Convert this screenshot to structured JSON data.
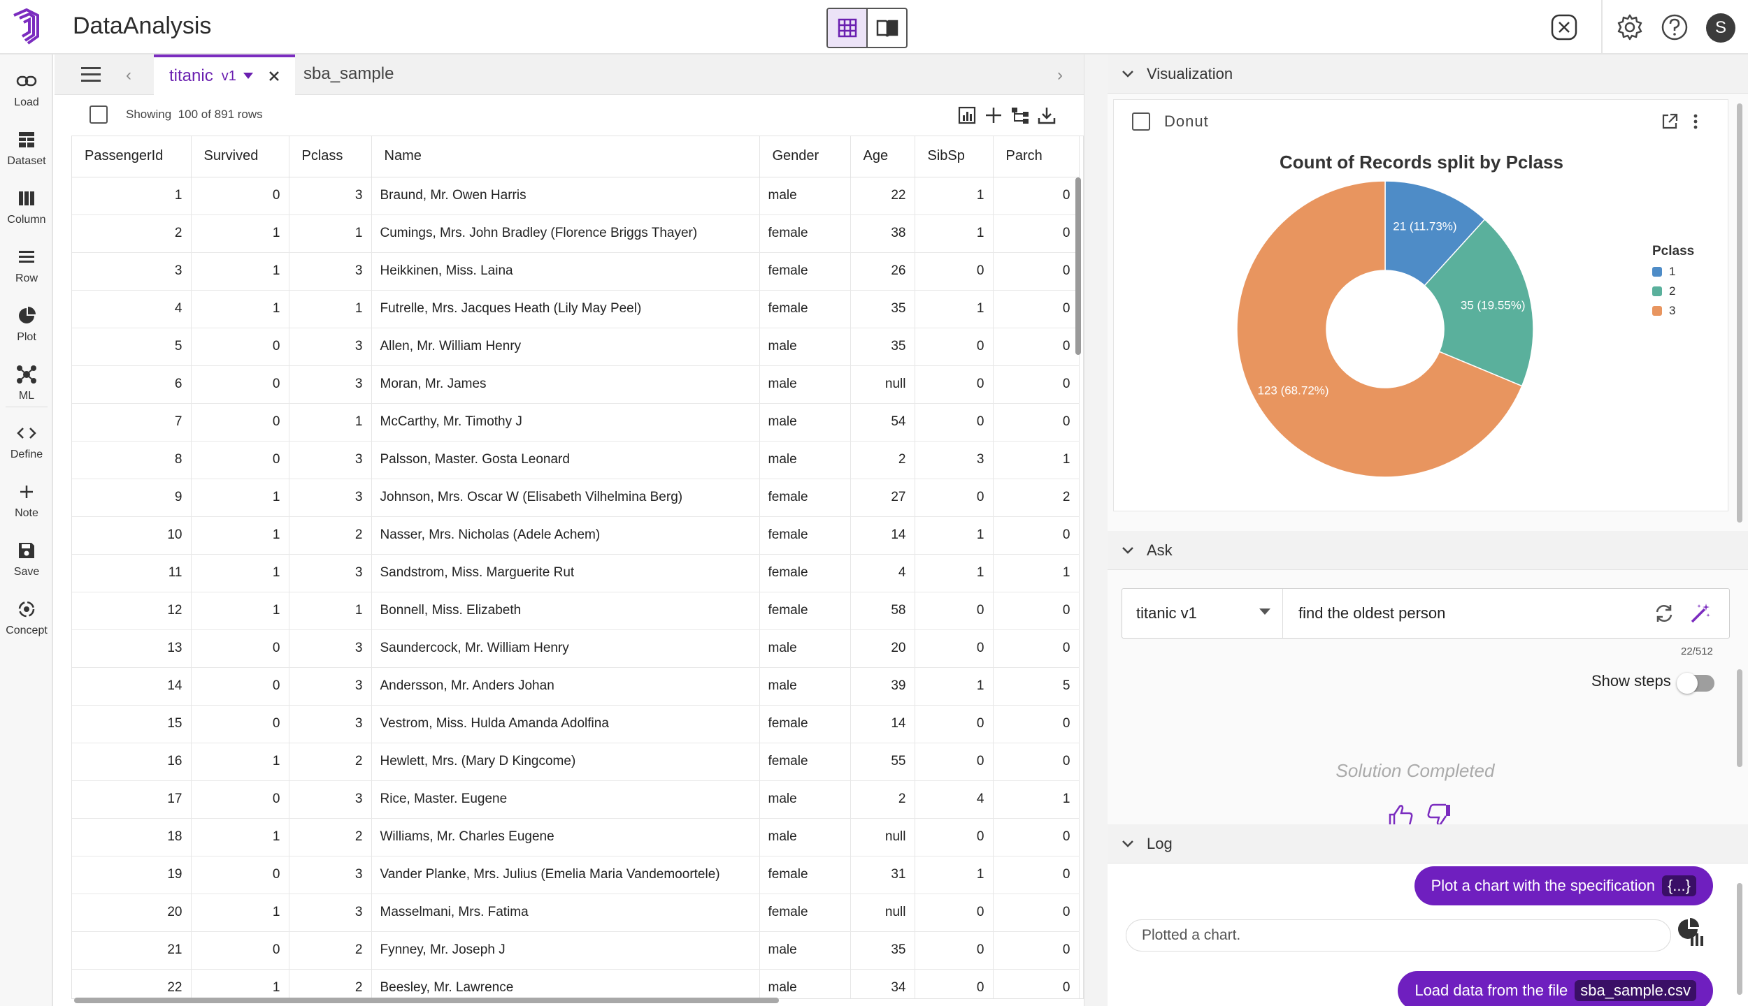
{
  "app": {
    "title": "DataAnalysis",
    "user_initial": "S"
  },
  "sidebar": {
    "items": [
      {
        "label": "Load"
      },
      {
        "label": "Dataset"
      },
      {
        "label": "Column"
      },
      {
        "label": "Row"
      },
      {
        "label": "Plot"
      },
      {
        "label": "ML"
      },
      {
        "label": "Define"
      },
      {
        "label": "Note"
      },
      {
        "label": "Save"
      },
      {
        "label": "Concept"
      }
    ]
  },
  "tabs": {
    "active": {
      "name": "titanic",
      "version": "v1"
    },
    "other": "sba_sample"
  },
  "table": {
    "showing_prefix": "Showing",
    "showing_count": "100 of 891 rows",
    "columns": [
      "PassengerId",
      "Survived",
      "Pclass",
      "Name",
      "Gender",
      "Age",
      "SibSp",
      "Parch"
    ],
    "rows": [
      [
        "1",
        "0",
        "3",
        "Braund, Mr. Owen Harris",
        "male",
        "22",
        "1",
        "0"
      ],
      [
        "2",
        "1",
        "1",
        "Cumings, Mrs. John Bradley (Florence Briggs Thayer)",
        "female",
        "38",
        "1",
        "0"
      ],
      [
        "3",
        "1",
        "3",
        "Heikkinen, Miss. Laina",
        "female",
        "26",
        "0",
        "0"
      ],
      [
        "4",
        "1",
        "1",
        "Futrelle, Mrs. Jacques Heath (Lily May Peel)",
        "female",
        "35",
        "1",
        "0"
      ],
      [
        "5",
        "0",
        "3",
        "Allen, Mr. William Henry",
        "male",
        "35",
        "0",
        "0"
      ],
      [
        "6",
        "0",
        "3",
        "Moran, Mr. James",
        "male",
        "null",
        "0",
        "0"
      ],
      [
        "7",
        "0",
        "1",
        "McCarthy, Mr. Timothy J",
        "male",
        "54",
        "0",
        "0"
      ],
      [
        "8",
        "0",
        "3",
        "Palsson, Master. Gosta Leonard",
        "male",
        "2",
        "3",
        "1"
      ],
      [
        "9",
        "1",
        "3",
        "Johnson, Mrs. Oscar W (Elisabeth Vilhelmina Berg)",
        "female",
        "27",
        "0",
        "2"
      ],
      [
        "10",
        "1",
        "2",
        "Nasser, Mrs. Nicholas (Adele Achem)",
        "female",
        "14",
        "1",
        "0"
      ],
      [
        "11",
        "1",
        "3",
        "Sandstrom, Miss. Marguerite Rut",
        "female",
        "4",
        "1",
        "1"
      ],
      [
        "12",
        "1",
        "1",
        "Bonnell, Miss. Elizabeth",
        "female",
        "58",
        "0",
        "0"
      ],
      [
        "13",
        "0",
        "3",
        "Saundercock, Mr. William Henry",
        "male",
        "20",
        "0",
        "0"
      ],
      [
        "14",
        "0",
        "3",
        "Andersson, Mr. Anders Johan",
        "male",
        "39",
        "1",
        "5"
      ],
      [
        "15",
        "0",
        "3",
        "Vestrom, Miss. Hulda Amanda Adolfina",
        "female",
        "14",
        "0",
        "0"
      ],
      [
        "16",
        "1",
        "2",
        "Hewlett, Mrs. (Mary D Kingcome)",
        "female",
        "55",
        "0",
        "0"
      ],
      [
        "17",
        "0",
        "3",
        "Rice, Master. Eugene",
        "male",
        "2",
        "4",
        "1"
      ],
      [
        "18",
        "1",
        "2",
        "Williams, Mr. Charles Eugene",
        "male",
        "null",
        "0",
        "0"
      ],
      [
        "19",
        "0",
        "3",
        "Vander Planke, Mrs. Julius (Emelia Maria Vandemoortele)",
        "female",
        "31",
        "1",
        "0"
      ],
      [
        "20",
        "1",
        "3",
        "Masselmani, Mrs. Fatima",
        "female",
        "null",
        "0",
        "0"
      ],
      [
        "21",
        "0",
        "2",
        "Fynney, Mr. Joseph J",
        "male",
        "35",
        "0",
        "0"
      ],
      [
        "22",
        "1",
        "2",
        "Beesley, Mr. Lawrence",
        "male",
        "34",
        "0",
        "0"
      ]
    ]
  },
  "visualization": {
    "section_label": "Visualization",
    "chart_type_label": "Donut"
  },
  "chart_data": {
    "type": "pie",
    "title": "Count of Records split by Pclass",
    "legend_title": "Pclass",
    "legend_position": "right",
    "slices": [
      {
        "label": "1",
        "value": 21,
        "percent": "11.73%",
        "color": "#4e8cc7"
      },
      {
        "label": "2",
        "value": 35,
        "percent": "19.55%",
        "color": "#5ab09c"
      },
      {
        "label": "3",
        "value": 123,
        "percent": "68.72%",
        "color": "#e8955f"
      }
    ]
  },
  "ask": {
    "section_label": "Ask",
    "dataset_value": "titanic v1",
    "query": "find the oldest person",
    "char_count": "22/512",
    "show_steps_label": "Show steps",
    "show_steps_on": false,
    "status": "Solution Completed"
  },
  "log": {
    "section_label": "Log",
    "messages": [
      {
        "text": "Plot a chart with the specification",
        "code": "{...}"
      },
      {
        "reply": "Plotted a chart."
      },
      {
        "text": "Load data from the file",
        "code": "sba_sample.csv"
      }
    ]
  },
  "colors": {
    "accent": "#7b2cbf",
    "bubble": "#6f1fbf"
  }
}
